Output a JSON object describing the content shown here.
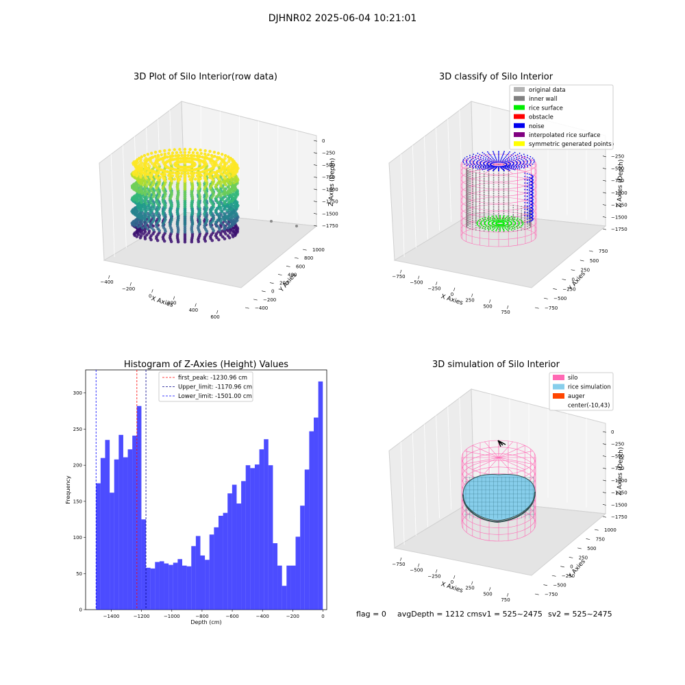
{
  "suptitle": "DJHNR02 2025-06-04 10:21:01",
  "colors": {
    "original": "#b3b3b3",
    "wall": "#808080",
    "rice": "#00ee00",
    "obstacle": "#ff0000",
    "noise": "#0000ee",
    "interp": "#800080",
    "sym": "#ffff00",
    "silo": "#ff69b4",
    "ricesim": "#87ceeb",
    "auger": "#ff4500",
    "hist": "#0000ff"
  },
  "plot1": {
    "title": "3D Plot of Silo Interior(row data)",
    "xlabel": "X Axies",
    "ylabel": "Y Axies",
    "zlabel": "Z Axies (Depth)",
    "xticks": [
      "−400",
      "−200",
      "0",
      "200",
      "400",
      "600"
    ],
    "yticks": [
      "−400",
      "−200",
      "0",
      "200",
      "400",
      "600",
      "800",
      "1000"
    ],
    "zticks": [
      "0",
      "−250",
      "−500",
      "−750",
      "−1000",
      "−1250",
      "−1500",
      "−1750"
    ]
  },
  "plot2": {
    "title": "3D classify of Silo Interior",
    "xlabel": "X Axies",
    "ylabel": "Y Axies",
    "zlabel": "Z Axies (Depth)",
    "xticks": [
      "−750",
      "−500",
      "−250",
      "0",
      "250",
      "500",
      "750"
    ],
    "yticks": [
      "−750",
      "−500",
      "−250",
      "0",
      "250",
      "500",
      "750"
    ],
    "zticks": [
      "0",
      "−250",
      "−500",
      "−750",
      "−1000",
      "−1250",
      "−1500",
      "−1750"
    ],
    "legend": [
      {
        "label": "original data",
        "color": "#b3b3b3"
      },
      {
        "label": "inner wall",
        "color": "#808080"
      },
      {
        "label": "rice surface",
        "color": "#00ee00"
      },
      {
        "label": "obstacle",
        "color": "#ff0000"
      },
      {
        "label": "noise",
        "color": "#0000ee"
      },
      {
        "label": "interpolated rice surface",
        "color": "#800080"
      },
      {
        "label": "symmetric generated points",
        "color": "#ffff00"
      }
    ]
  },
  "plot4": {
    "title": "3D simulation of Silo Interior",
    "xlabel": "X Axies",
    "ylabel": "Y Axies",
    "zlabel": "Z Axies (Depth)",
    "xticks": [
      "−750",
      "−500",
      "−250",
      "0",
      "250",
      "500",
      "750"
    ],
    "yticks": [
      "−750",
      "−500",
      "−250",
      "0",
      "250",
      "500",
      "750",
      "1000"
    ],
    "zticks": [
      "0",
      "−250",
      "−500",
      "−750",
      "−1000",
      "−1250",
      "−1500",
      "−1750"
    ],
    "legend": [
      {
        "label": "silo",
        "color": "#ff69b4"
      },
      {
        "label": "rice simulation",
        "color": "#87ceeb"
      },
      {
        "label": "auger",
        "color": "#ff4500"
      },
      {
        "label": "center(-10,43)",
        "color": "#ffffff"
      }
    ]
  },
  "footer": {
    "flag": "flag = 0",
    "avg": "avgDepth = 1212 cmsv1 = 525~2475",
    "sv2": "sv2 = 525~2475"
  },
  "chart_data": {
    "type": "bar",
    "title": "Histogram of Z-Axies (Height) Values",
    "xlabel": "Depth (cm)",
    "ylabel": "Frequency",
    "xlim": [
      -1570,
      25
    ],
    "ylim": [
      0,
      332
    ],
    "xticks": [
      -1400,
      -1200,
      -1000,
      -800,
      -600,
      -400,
      -200,
      0
    ],
    "yticks": [
      0,
      50,
      100,
      150,
      200,
      250,
      300
    ],
    "bin_start": -1501,
    "bin_width": 30,
    "values": [
      175,
      210,
      235,
      162,
      208,
      242,
      211,
      222,
      241,
      282,
      125,
      58,
      57,
      66,
      67,
      64,
      62,
      65,
      70,
      61,
      60,
      88,
      102,
      75,
      69,
      104,
      114,
      130,
      134,
      161,
      173,
      147,
      178,
      200,
      196,
      201,
      222,
      236,
      200,
      92,
      61,
      33,
      61,
      61,
      101,
      144,
      194,
      247,
      266,
      316
    ],
    "lines": [
      {
        "label": "first_peak: -1230.96 cm",
        "x": -1230.96,
        "color": "#ff0000"
      },
      {
        "label": "Upper_limit: -1170.96 cm",
        "x": -1170.96,
        "color": "#00008b"
      },
      {
        "label": "Lower_limit: -1501.00 cm",
        "x": -1501.0,
        "color": "#0000ff"
      }
    ]
  }
}
